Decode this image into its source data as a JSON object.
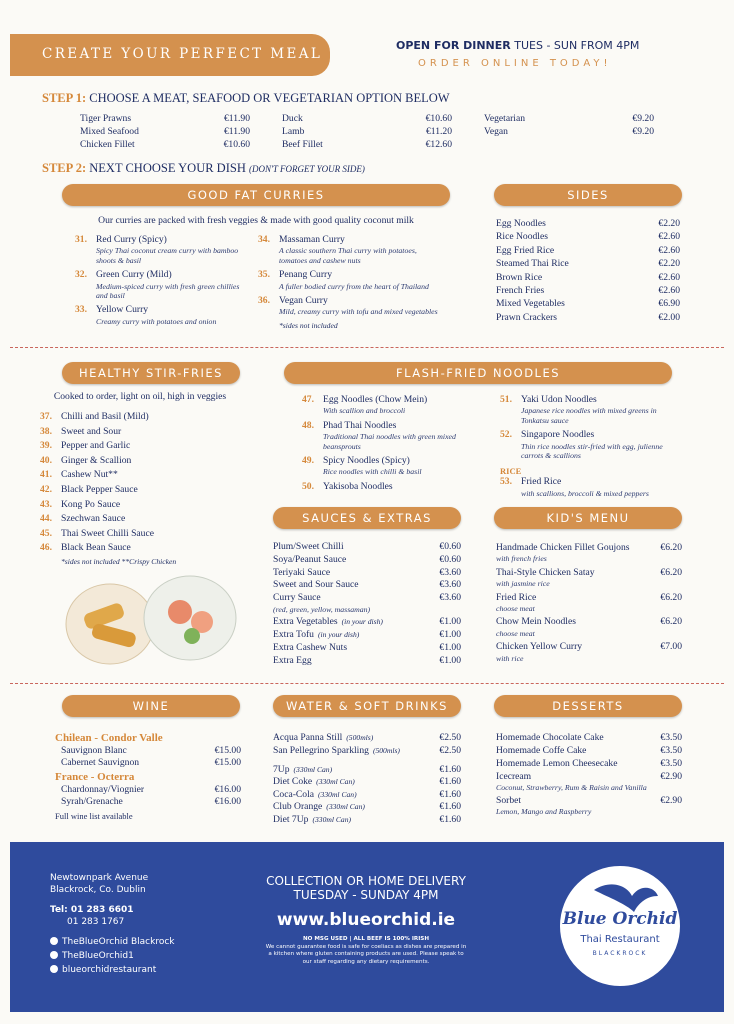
{
  "header": {
    "title": "CREATE YOUR PERFECT MEAL",
    "open_label": "OPEN FOR DINNER",
    "open_hours": "TUES - SUN FROM 4PM",
    "order": "ORDER ONLINE TODAY!"
  },
  "step1": {
    "label": "STEP 1:",
    "text": "CHOOSE A MEAT, SEAFOOD OR VEGETARIAN OPTION BELOW",
    "columns": [
      [
        {
          "name": "Tiger Prawns",
          "price": "€11.90"
        },
        {
          "name": "Mixed Seafood",
          "price": "€11.90"
        },
        {
          "name": "Chicken Fillet",
          "price": "€10.60"
        }
      ],
      [
        {
          "name": "Duck",
          "price": "€10.60"
        },
        {
          "name": "Lamb",
          "price": "€11.20"
        },
        {
          "name": "Beef Fillet",
          "price": "€12.60"
        }
      ],
      [
        {
          "name": "Vegetarian",
          "price": "€9.20"
        },
        {
          "name": "Vegan",
          "price": "€9.20"
        }
      ]
    ]
  },
  "step2": {
    "label": "STEP 2:",
    "text": "NEXT CHOOSE YOUR DISH",
    "note": "(DON'T FORGET YOUR SIDE)"
  },
  "curries": {
    "title": "GOOD FAT CURRIES",
    "intro": "Our curries are packed with fresh veggies & made with good quality coconut milk",
    "items": [
      {
        "num": "31.",
        "name": "Red Curry (Spicy)",
        "desc": "Spicy Thai coconut cream curry with bamboo shoots & basil"
      },
      {
        "num": "32.",
        "name": "Green Curry (Mild)",
        "desc": "Medium-spiced curry with fresh green chillies and basil"
      },
      {
        "num": "33.",
        "name": "Yellow Curry",
        "desc": "Creamy curry with potatoes and onion"
      },
      {
        "num": "34.",
        "name": "Massaman Curry",
        "desc": "A classic southern Thai curry with potatoes, tomatoes and cashew nuts"
      },
      {
        "num": "35.",
        "name": "Penang Curry",
        "desc": "A fuller bodied curry from the heart of Thailand"
      },
      {
        "num": "36.",
        "name": "Vegan Curry",
        "desc": "Mild, creamy curry with tofu and mixed vegetables"
      }
    ],
    "note": "*sides not included"
  },
  "sides": {
    "title": "SIDES",
    "items": [
      {
        "name": "Egg Noodles",
        "price": "€2.20"
      },
      {
        "name": "Rice Noodles",
        "price": "€2.60"
      },
      {
        "name": "Egg Fried Rice",
        "price": "€2.60"
      },
      {
        "name": "Steamed Thai Rice",
        "price": "€2.20"
      },
      {
        "name": "Brown Rice",
        "price": "€2.60"
      },
      {
        "name": "French Fries",
        "price": "€2.60"
      },
      {
        "name": "Mixed Vegetables",
        "price": "€6.90"
      },
      {
        "name": "Prawn Crackers",
        "price": "€2.00"
      }
    ]
  },
  "stirfries": {
    "title": "HEALTHY STIR-FRIES",
    "intro": "Cooked to order, light on oil, high in veggies",
    "items": [
      {
        "num": "37.",
        "name": "Chilli and Basil (Mild)"
      },
      {
        "num": "38.",
        "name": "Sweet and Sour"
      },
      {
        "num": "39.",
        "name": "Pepper and Garlic"
      },
      {
        "num": "40.",
        "name": "Ginger & Scallion"
      },
      {
        "num": "41.",
        "name": "Cashew Nut**"
      },
      {
        "num": "42.",
        "name": "Black Pepper Sauce"
      },
      {
        "num": "43.",
        "name": "Kong Po Sauce"
      },
      {
        "num": "44.",
        "name": "Szechwan Sauce"
      },
      {
        "num": "45.",
        "name": "Thai Sweet Chilli Sauce"
      },
      {
        "num": "46.",
        "name": "Black Bean Sauce"
      }
    ],
    "note": "*sides not included **Crispy Chicken"
  },
  "noodles": {
    "title": "FLASH-FRIED NOODLES",
    "items": [
      {
        "num": "47.",
        "name": "Egg Noodles (Chow Mein)",
        "desc": "With scallion and broccoli"
      },
      {
        "num": "48.",
        "name": "Phad Thai Noodles",
        "desc": "Traditional Thai noodles with green mixed beansprouts"
      },
      {
        "num": "49.",
        "name": "Spicy Noodles (Spicy)",
        "desc": "Rice noodles with chilli & basil"
      },
      {
        "num": "50.",
        "name": "Yakisoba Noodles"
      },
      {
        "num": "51.",
        "name": "Yaki Udon Noodles",
        "desc": "Japanese rice noodles with mixed greens in Tonkatsu sauce"
      },
      {
        "num": "52.",
        "name": "Singapore Noodles",
        "desc": "Thin rice noodles stir-fried with egg, julienne carrots & scallions"
      }
    ],
    "rice": {
      "label": "RICE",
      "items": [
        {
          "num": "53.",
          "name": "Fried Rice",
          "desc": "with scallions, broccoli & mixed peppers"
        }
      ]
    }
  },
  "sauces": {
    "title": "SAUCES & EXTRAS",
    "items": [
      {
        "name": "Plum/Sweet Chilli",
        "price": "€0.60"
      },
      {
        "name": "Soya/Peanut Sauce",
        "price": "€0.60"
      },
      {
        "name": "Teriyaki Sauce",
        "price": "€3.60"
      },
      {
        "name": "Sweet and Sour Sauce",
        "price": "€3.60"
      },
      {
        "name": "Curry Sauce",
        "price": "€3.60",
        "desc": "(red, green, yellow, massaman)"
      },
      {
        "name": "Extra Vegetables",
        "sub": "(in your dish)",
        "price": "€1.00"
      },
      {
        "name": "Extra Tofu",
        "sub": "(in your dish)",
        "price": "€1.00"
      },
      {
        "name": "Extra Cashew Nuts",
        "price": "€1.00"
      },
      {
        "name": "Extra Egg",
        "price": "€1.00"
      }
    ]
  },
  "kids": {
    "title": "KID'S MENU",
    "items": [
      {
        "name": "Handmade Chicken Fillet Goujons",
        "price": "€6.20",
        "desc": "with french fries"
      },
      {
        "name": "Thai-Style Chicken Satay",
        "price": "€6.20",
        "desc": "with jasmine rice"
      },
      {
        "name": "Fried Rice",
        "price": "€6.20",
        "desc": "choose meat"
      },
      {
        "name": "Chow Mein Noodles",
        "price": "€6.20",
        "desc": "choose meat"
      },
      {
        "name": "Chicken Yellow Curry",
        "price": "€7.00",
        "desc": "with rice"
      }
    ]
  },
  "wine": {
    "title": "WINE",
    "groups": [
      {
        "label": "Chilean - Condor Valle",
        "items": [
          {
            "name": "Sauvignon Blanc",
            "price": "€15.00"
          },
          {
            "name": "Cabernet Sauvignon",
            "price": "€15.00"
          }
        ]
      },
      {
        "label": "France - Octerra",
        "items": [
          {
            "name": "Chardonnay/Viognier",
            "price": "€16.00"
          },
          {
            "name": "Syrah/Grenache",
            "price": "€16.00"
          }
        ]
      }
    ],
    "note": "Full wine list available"
  },
  "drinks": {
    "title": "WATER & SOFT DRINKS",
    "items": [
      {
        "name": "Acqua Panna Still",
        "sub": "(500mls)",
        "price": "€2.50"
      },
      {
        "name": "San Pellegrino Sparkling",
        "sub": "(500mls)",
        "price": "€2.50"
      }
    ],
    "cans": [
      {
        "name": "7Up",
        "sub": "(330ml Can)",
        "price": "€1.60"
      },
      {
        "name": "Diet Coke",
        "sub": "(330ml Can)",
        "price": "€1.60"
      },
      {
        "name": "Coca-Cola",
        "sub": "(330ml Can)",
        "price": "€1.60"
      },
      {
        "name": "Club Orange",
        "sub": "(330ml Can)",
        "price": "€1.60"
      },
      {
        "name": "Diet 7Up",
        "sub": "(330ml Can)",
        "price": "€1.60"
      }
    ]
  },
  "desserts": {
    "title": "DESSERTS",
    "items": [
      {
        "name": "Homemade Chocolate Cake",
        "price": "€3.50"
      },
      {
        "name": "Homemade Coffe Cake",
        "price": "€3.50"
      },
      {
        "name": "Homemade Lemon Cheesecake",
        "price": "€3.50"
      },
      {
        "name": "Icecream",
        "price": "€2.90",
        "desc": "Coconut, Strawberry, Rum & Raisin and Vanilla"
      },
      {
        "name": "Sorbet",
        "price": "€2.90",
        "desc": "Lemon, Mango and Raspberry"
      }
    ]
  },
  "footer": {
    "address": [
      "Newtownpark Avenue",
      "Blackrock, Co. Dublin"
    ],
    "phones": [
      "Tel: 01 283 6601",
      "01 283 1767"
    ],
    "social": [
      "TheBlueOrchid Blackrock",
      "TheBlueOrchid1",
      "blueorchidrestaurant"
    ],
    "delivery": [
      "COLLECTION OR HOME DELIVERY",
      "TUESDAY - SUNDAY 4PM"
    ],
    "website": "www.blueorchid.ie",
    "msg": "NO MSG USED | ALL BEEF IS 100% IRISH",
    "disclaimer": "We cannot guarantee food is safe for coeliacs as dishes are prepared in a kitchen where gluten containing products are used. Please speak to our staff regarding any dietary requirements.",
    "logo": {
      "name": "Blue Orchid",
      "sub": "Thai Restaurant",
      "place": "BLACKROCK"
    }
  }
}
